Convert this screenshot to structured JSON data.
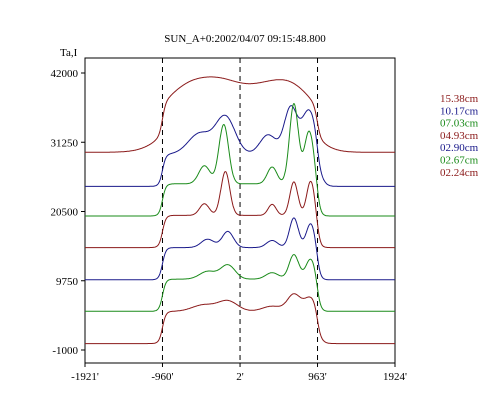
{
  "chart_data": {
    "type": "line",
    "title": "SUN_A+0:2002/04/07 09:15:48.800",
    "ylabel": "Ta,I",
    "xlabel": "",
    "x_ticks": [
      "-1921'",
      "-960'",
      "2'",
      "963'",
      "1924'"
    ],
    "y_ticks": [
      "42000",
      "31250",
      "20500",
      "9750",
      "-1000"
    ],
    "xlim": [
      -1921,
      1924
    ],
    "ylim": [
      -1000,
      42000
    ],
    "grid": false,
    "vlines": [
      -960,
      2,
      963
    ],
    "legend_position": "right",
    "series": [
      {
        "name": "15.38cm",
        "color": "#8b1a1a",
        "baseline": 29700,
        "bumps": [
          [
            -650,
            4800,
            280
          ],
          [
            -200,
            4500,
            260
          ],
          [
            300,
            4000,
            260
          ],
          [
            680,
            4200,
            240
          ]
        ]
      },
      {
        "name": "10.17cm",
        "color": "#1a1a8b",
        "baseline": 24400,
        "bumps": [
          [
            -500,
            3200,
            140
          ],
          [
            -180,
            5800,
            120
          ],
          [
            350,
            3000,
            100
          ],
          [
            630,
            7200,
            80
          ],
          [
            860,
            6800,
            90
          ]
        ]
      },
      {
        "name": "07.03cm",
        "color": "#1a8b1a",
        "baseline": 19800,
        "bumps": [
          [
            -440,
            2800,
            70
          ],
          [
            -200,
            9200,
            60
          ],
          [
            400,
            2600,
            60
          ],
          [
            670,
            12400,
            55
          ],
          [
            860,
            8200,
            60
          ]
        ]
      },
      {
        "name": "04.93cm",
        "color": "#8b1a1a",
        "baseline": 14900,
        "bumps": [
          [
            -440,
            1800,
            60
          ],
          [
            -180,
            6800,
            55
          ],
          [
            400,
            1700,
            50
          ],
          [
            670,
            5200,
            50
          ],
          [
            880,
            5400,
            50
          ]
        ]
      },
      {
        "name": "02.90cm",
        "color": "#1a1a8b",
        "baseline": 9900,
        "bumps": [
          [
            -400,
            1300,
            80
          ],
          [
            -150,
            2500,
            70
          ],
          [
            400,
            1100,
            70
          ],
          [
            670,
            4600,
            55
          ],
          [
            880,
            3800,
            55
          ]
        ]
      },
      {
        "name": "02.67cm",
        "color": "#1a8b1a",
        "baseline": 5000,
        "bumps": [
          [
            -400,
            1200,
            100
          ],
          [
            -150,
            2200,
            90
          ],
          [
            400,
            1000,
            80
          ],
          [
            670,
            3800,
            60
          ],
          [
            880,
            3200,
            60
          ]
        ]
      },
      {
        "name": "02.24cm",
        "color": "#8b1a1a",
        "baseline": 0,
        "bumps": [
          [
            -450,
            1000,
            140
          ],
          [
            -150,
            1600,
            120
          ],
          [
            400,
            800,
            120
          ],
          [
            670,
            2600,
            80
          ],
          [
            880,
            2200,
            80
          ]
        ]
      }
    ]
  }
}
